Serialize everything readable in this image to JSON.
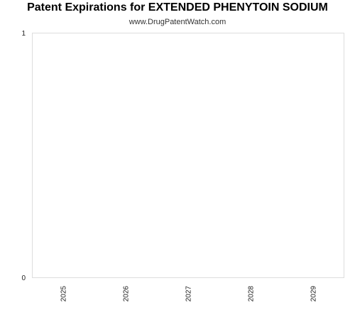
{
  "chart_data": {
    "type": "bar",
    "title": "Patent Expirations for EXTENDED PHENYTOIN SODIUM",
    "subtitle": "www.DrugPatentWatch.com",
    "xlabel": "",
    "ylabel": "",
    "categories": [
      "2025",
      "2026",
      "2027",
      "2028",
      "2029"
    ],
    "values": [
      0,
      0,
      0,
      0,
      0
    ],
    "ylim": [
      0,
      1
    ],
    "y_ticks": [
      "0",
      "1"
    ],
    "grid": false,
    "legend": "none"
  }
}
